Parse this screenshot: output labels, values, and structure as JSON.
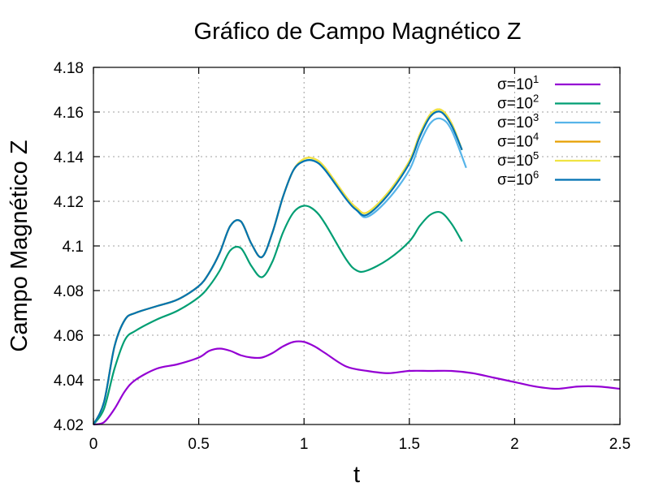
{
  "chart_data": {
    "type": "line",
    "title": "Gráfico de Campo Magnético Z",
    "xlabel": "t",
    "ylabel": "Campo Magnético Z",
    "xlim": [
      0,
      2.5
    ],
    "ylim": [
      4.02,
      4.18
    ],
    "xticks": [
      0,
      0.5,
      1,
      1.5,
      2,
      2.5
    ],
    "xtick_labels": [
      "0",
      "0.5",
      "1",
      "1.5",
      "2",
      "2.5"
    ],
    "yticks": [
      4.02,
      4.04,
      4.06,
      4.08,
      4.1,
      4.12,
      4.14,
      4.16,
      4.18
    ],
    "ytick_labels": [
      "4.02",
      "4.04",
      "4.06",
      "4.08",
      "4.1",
      "4.12",
      "4.14",
      "4.16",
      "4.18"
    ],
    "grid": true,
    "legend_position": "top-right",
    "series": [
      {
        "name": "σ=10",
        "exponent": "1",
        "color": "#9400d3",
        "x": [
          0,
          0.05,
          0.1,
          0.15,
          0.2,
          0.3,
          0.4,
          0.5,
          0.55,
          0.6,
          0.65,
          0.7,
          0.75,
          0.8,
          0.85,
          0.9,
          0.95,
          1.0,
          1.05,
          1.1,
          1.2,
          1.3,
          1.4,
          1.5,
          1.6,
          1.7,
          1.8,
          1.9,
          2.0,
          2.1,
          2.2,
          2.3,
          2.4,
          2.5
        ],
        "y": [
          4.02,
          4.021,
          4.027,
          4.035,
          4.04,
          4.045,
          4.047,
          4.05,
          4.053,
          4.054,
          4.053,
          4.051,
          4.05,
          4.05,
          4.052,
          4.055,
          4.057,
          4.057,
          4.055,
          4.052,
          4.046,
          4.044,
          4.043,
          4.044,
          4.044,
          4.044,
          4.043,
          4.041,
          4.039,
          4.037,
          4.036,
          4.037,
          4.037,
          4.036
        ]
      },
      {
        "name": "σ=10",
        "exponent": "2",
        "color": "#009e73",
        "x": [
          0,
          0.05,
          0.1,
          0.15,
          0.2,
          0.3,
          0.4,
          0.5,
          0.55,
          0.6,
          0.65,
          0.7,
          0.75,
          0.8,
          0.85,
          0.9,
          0.95,
          1.0,
          1.05,
          1.1,
          1.2,
          1.25,
          1.3,
          1.4,
          1.5,
          1.55,
          1.6,
          1.65,
          1.7,
          1.75
        ],
        "y": [
          4.02,
          4.027,
          4.045,
          4.058,
          4.062,
          4.067,
          4.071,
          4.077,
          4.082,
          4.089,
          4.098,
          4.099,
          4.091,
          4.086,
          4.093,
          4.106,
          4.115,
          4.118,
          4.116,
          4.11,
          4.094,
          4.089,
          4.089,
          4.094,
          4.102,
          4.109,
          4.114,
          4.115,
          4.11,
          4.102
        ]
      },
      {
        "name": "σ=10",
        "exponent": "3",
        "color": "#56b4e9",
        "x": [
          0,
          0.05,
          0.1,
          0.15,
          0.2,
          0.3,
          0.4,
          0.5,
          0.55,
          0.6,
          0.65,
          0.7,
          0.75,
          0.8,
          0.85,
          0.9,
          0.95,
          1.0,
          1.05,
          1.1,
          1.2,
          1.25,
          1.3,
          1.4,
          1.5,
          1.55,
          1.6,
          1.65,
          1.7,
          1.77
        ],
        "y": [
          4.02,
          4.03,
          4.055,
          4.067,
          4.07,
          4.073,
          4.076,
          4.082,
          4.088,
          4.097,
          4.109,
          4.111,
          4.101,
          4.095,
          4.106,
          4.122,
          4.134,
          4.138,
          4.138,
          4.134,
          4.121,
          4.116,
          4.113,
          4.121,
          4.134,
          4.146,
          4.155,
          4.157,
          4.152,
          4.135
        ]
      },
      {
        "name": "σ=10",
        "exponent": "4",
        "color": "#e69f00",
        "x": [
          0,
          0.05,
          0.1,
          0.15,
          0.2,
          0.3,
          0.4,
          0.5,
          0.55,
          0.6,
          0.65,
          0.7,
          0.75,
          0.8,
          0.85,
          0.9,
          0.95,
          1.0,
          1.05,
          1.1,
          1.2,
          1.25,
          1.3,
          1.4,
          1.5,
          1.55,
          1.6,
          1.65,
          1.7,
          1.75
        ],
        "y": [
          4.02,
          4.03,
          4.055,
          4.067,
          4.07,
          4.073,
          4.076,
          4.082,
          4.088,
          4.097,
          4.109,
          4.111,
          4.101,
          4.095,
          4.106,
          4.122,
          4.134,
          4.139,
          4.139,
          4.135,
          4.122,
          4.117,
          4.115,
          4.124,
          4.138,
          4.15,
          4.159,
          4.161,
          4.155,
          4.143
        ]
      },
      {
        "name": "σ=10",
        "exponent": "5",
        "color": "#f0e442",
        "x": [
          0,
          0.05,
          0.1,
          0.15,
          0.2,
          0.3,
          0.4,
          0.5,
          0.55,
          0.6,
          0.65,
          0.7,
          0.75,
          0.8,
          0.85,
          0.9,
          0.95,
          1.0,
          1.05,
          1.1,
          1.2,
          1.25,
          1.3,
          1.4,
          1.5,
          1.55,
          1.6,
          1.65,
          1.7,
          1.75
        ],
        "y": [
          4.02,
          4.03,
          4.055,
          4.067,
          4.07,
          4.073,
          4.076,
          4.082,
          4.088,
          4.097,
          4.109,
          4.111,
          4.101,
          4.095,
          4.106,
          4.122,
          4.134,
          4.139,
          4.139,
          4.135,
          4.122,
          4.117,
          4.115,
          4.124,
          4.138,
          4.15,
          4.159,
          4.161,
          4.155,
          4.143
        ]
      },
      {
        "name": "σ=10",
        "exponent": "6",
        "color": "#0072b2",
        "x": [
          0,
          0.05,
          0.1,
          0.15,
          0.2,
          0.3,
          0.4,
          0.5,
          0.55,
          0.6,
          0.65,
          0.7,
          0.75,
          0.8,
          0.85,
          0.9,
          0.95,
          1.0,
          1.05,
          1.1,
          1.2,
          1.25,
          1.3,
          1.4,
          1.5,
          1.55,
          1.6,
          1.65,
          1.7,
          1.75
        ],
        "y": [
          4.02,
          4.03,
          4.055,
          4.067,
          4.07,
          4.073,
          4.076,
          4.082,
          4.088,
          4.097,
          4.109,
          4.111,
          4.101,
          4.095,
          4.106,
          4.122,
          4.134,
          4.138,
          4.138,
          4.134,
          4.121,
          4.116,
          4.114,
          4.123,
          4.137,
          4.149,
          4.158,
          4.16,
          4.154,
          4.143
        ]
      }
    ]
  }
}
